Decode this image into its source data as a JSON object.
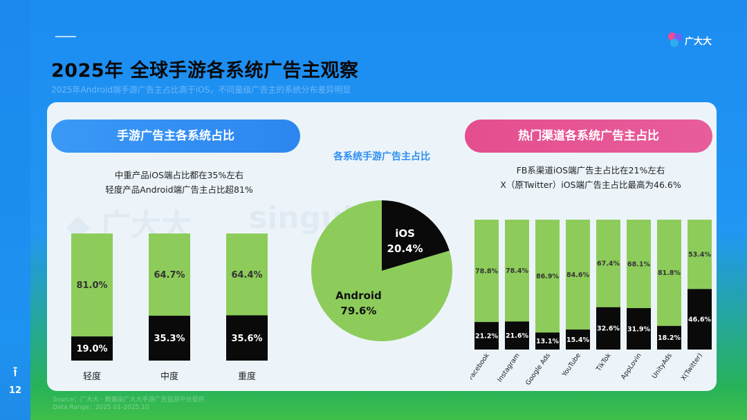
{
  "page": {
    "number": "12",
    "title": "2025年 全球手游各系统广告主观察",
    "subtitle": "2025年Android端手游广告主占比高于iOS，不同量级广告主的系统分布差异明显",
    "logo_text": "广大大"
  },
  "colors": {
    "green": "#8dcc5a",
    "black": "#0a0a0a",
    "blue": "#2c8ef1",
    "pink": "#e6568f"
  },
  "left_panel": {
    "pill": "手游广告主各系统占比",
    "note_line1": "中重产品iOS端占比都在35%左右",
    "note_line2": "轻度产品Android端广告主占比超81%"
  },
  "middle_panel": {
    "title": "各系统手游广告主占比"
  },
  "right_panel": {
    "pill": "热门渠道各系统广告主占比",
    "note_line1": "FB系渠道iOS端广告主占比在21%左右",
    "note_line2": "X（原Twitter）iOS端广告主占比最高为46.6%"
  },
  "source": {
    "line1": "Source：广大大 · 数据由广大大手游广告监测平台提供",
    "line2": "Data Range：2025.01-2025.10"
  },
  "chart_data": [
    {
      "type": "bar",
      "stacked": true,
      "percent": true,
      "categories": [
        "轻度",
        "中度",
        "重度"
      ],
      "series": [
        {
          "values": [
            19.0,
            35.3,
            35.6
          ],
          "color": "#0a0a0a"
        },
        {
          "values": [
            81.0,
            64.7,
            64.4
          ],
          "color": "#8dcc5a"
        }
      ],
      "value_labels": [
        [
          "19.0%",
          "35.3%",
          "35.6%"
        ],
        [
          "81.0%",
          "64.7%",
          "64.4%"
        ]
      ]
    },
    {
      "type": "pie",
      "title": "各系统手游广告主占比",
      "slices": [
        {
          "label": "iOS",
          "value": 20.4,
          "value_label": "20.4%",
          "color": "#0a0a0a"
        },
        {
          "label": "Android",
          "value": 79.6,
          "value_label": "79.6%",
          "color": "#8dcc5a"
        }
      ]
    },
    {
      "type": "bar",
      "stacked": true,
      "percent": true,
      "categories": [
        "Facebook",
        "Instagram",
        "Google Ads",
        "YouTube",
        "TikTok",
        "AppLovin",
        "UnityAds",
        "X(Twitter)"
      ],
      "series": [
        {
          "values": [
            21.2,
            21.6,
            13.1,
            15.4,
            32.6,
            31.9,
            18.2,
            46.6
          ],
          "color": "#0a0a0a"
        },
        {
          "values": [
            78.8,
            78.4,
            86.9,
            84.6,
            67.4,
            68.1,
            81.8,
            53.4
          ],
          "color": "#8dcc5a"
        }
      ],
      "value_labels": [
        [
          "21.2%",
          "21.6%",
          "13.1%",
          "15.4%",
          "32.6%",
          "31.9%",
          "18.2%",
          "46.6%"
        ],
        [
          "78.8%",
          "78.4%",
          "86.9%",
          "84.6%",
          "67.4%",
          "68.1%",
          "81.8%",
          "53.4%"
        ]
      ]
    }
  ]
}
